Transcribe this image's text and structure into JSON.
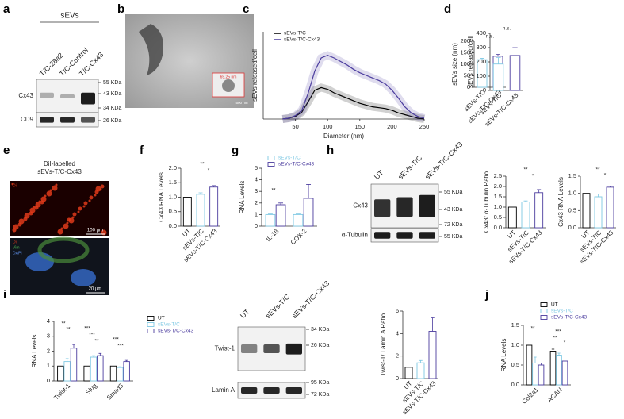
{
  "panel_letters": [
    "a",
    "b",
    "c",
    "d",
    "e",
    "f",
    "g",
    "h",
    "i",
    "j"
  ],
  "blots": {
    "a": {
      "header": "sEVs",
      "lanes": [
        "T/C-28a2",
        "T/C-Control",
        "T/C-Cx43"
      ],
      "rows": [
        "Cx43",
        "CD9"
      ],
      "markers": [
        "55 KDa",
        "43 KDa",
        "34 KDa",
        "26 KDa"
      ]
    },
    "h": {
      "lanes": [
        "UT",
        "sEVs-T/C",
        "sEVs-T/C-Cx43"
      ],
      "rows": [
        "Cx43",
        "α-Tubulin"
      ],
      "markers": [
        "55 KDa",
        "43 KDa",
        "72 KDa",
        "55 KDa"
      ]
    },
    "i": {
      "lanes": [
        "UT",
        "sEVs-T/C",
        "sEVs-T/C-Cx43"
      ],
      "rows": [
        "Twist-1",
        "Lamin A"
      ],
      "markers": [
        "34 KDa",
        "26 KDa",
        "95 KDa",
        "72 KDa"
      ]
    }
  },
  "images": {
    "b": {
      "inset": "69.25 nm",
      "scale": "500 nm"
    },
    "e": {
      "title": "DiI-labelled",
      "subtitle": "sEVs-T/C-Cx43",
      "scale_top": "100 µm",
      "scale_bottom": "20 µm",
      "channels": [
        "DiI",
        "Vim",
        "DAPI"
      ]
    }
  },
  "chart_data": [
    {
      "type": "line",
      "xlabel": "Diameter (nm)",
      "ylabel": "sEVs released/cell",
      "xlim": [
        0,
        250
      ],
      "xticks": [
        50,
        100,
        150,
        200,
        250
      ],
      "ylim": [
        0,
        100
      ],
      "x": [
        30,
        40,
        50,
        60,
        70,
        80,
        90,
        100,
        110,
        120,
        130,
        140,
        150,
        160,
        170,
        180,
        190,
        200,
        210,
        220,
        230,
        240,
        250
      ],
      "series": [
        {
          "name": "sEVs-T/C",
          "color": "#000000",
          "values": [
            0,
            1,
            3,
            8,
            20,
            33,
            36,
            34,
            30,
            27,
            24,
            21,
            18,
            16,
            14,
            13,
            12,
            10,
            7,
            5,
            3,
            1,
            0
          ]
        },
        {
          "name": "sEVs-T/C-Cx43",
          "color": "#4b3c9e",
          "values": [
            0,
            1,
            4,
            10,
            30,
            55,
            70,
            73,
            70,
            66,
            62,
            57,
            53,
            50,
            47,
            44,
            40,
            33,
            24,
            14,
            7,
            3,
            1
          ]
        }
      ]
    },
    {
      "type": "bar",
      "ylabel": "sEVs size (nm)",
      "categories": [
        "sEVs-T/C",
        "sEVs-T/C-Cx43"
      ],
      "values": [
        120,
        135
      ],
      "errors": [
        6,
        8
      ],
      "colors": [
        "#7ec8e3",
        "#4b3c9e"
      ],
      "ylim": [
        0,
        200
      ],
      "yticks": [
        0,
        50,
        100,
        150,
        200
      ],
      "annotations": [
        "n.s."
      ]
    },
    {
      "type": "bar",
      "ylabel": "sEVs released/cell",
      "categories": [
        "sEVs-T/C",
        "sEVs-T/C-Cx43"
      ],
      "values": [
        185,
        245
      ],
      "errors": [
        45,
        55
      ],
      "colors": [
        "#7ec8e3",
        "#4b3c9e"
      ],
      "ylim": [
        0,
        400
      ],
      "yticks": [
        0,
        100,
        200,
        300,
        400
      ],
      "annotations": [
        "n.s."
      ]
    },
    {
      "type": "bar",
      "ylabel": "Cx43 RNA Levels",
      "categories": [
        "UT",
        "sEVs-T/C",
        "sEVs-T/C-Cx43"
      ],
      "values": [
        1.0,
        1.1,
        1.35
      ],
      "errors": [
        0,
        0.05,
        0.05
      ],
      "colors": [
        "#000000",
        "#7ec8e3",
        "#4b3c9e"
      ],
      "ylim": [
        0,
        2
      ],
      "yticks": [
        {
          "value": 0,
          "label": "0.0"
        },
        0.5,
        {
          "value": 1,
          "label": "1.0"
        },
        1.5,
        {
          "value": 2,
          "label": "2.0"
        }
      ],
      "annotations": [
        "**",
        "*"
      ]
    },
    {
      "type": "bar",
      "ylabel": "RNA Levels",
      "categories": [
        "IL-1ß",
        "COX-2"
      ],
      "series": [
        {
          "name": "sEVs-T/C",
          "color": "#7ec8e3",
          "values": [
            1,
            1
          ],
          "errors": [
            0.05,
            0.05
          ]
        },
        {
          "name": "sEVs-T/C-Cx43",
          "color": "#4b3c9e",
          "values": [
            1.85,
            2.4
          ],
          "errors": [
            0.15,
            1.2
          ]
        }
      ],
      "ylim": [
        0,
        5
      ],
      "yticks": [
        0,
        1,
        2,
        3,
        4,
        5
      ],
      "annotations": [
        "**"
      ]
    },
    {
      "type": "bar",
      "ylabel": "Cx43/ α-Tubulin Ratio",
      "categories": [
        "UT",
        "sEVs-T/C",
        "sEVs-T/C-Cx43"
      ],
      "values": [
        1,
        1.25,
        1.7
      ],
      "errors": [
        0,
        0.05,
        0.15
      ],
      "colors": [
        "#000000",
        "#7ec8e3",
        "#4b3c9e"
      ],
      "ylim": [
        0,
        2.5
      ],
      "yticks": [
        {
          "value": 0,
          "label": "0.0"
        },
        0.5,
        {
          "value": 1,
          "label": "1.0"
        },
        1.5,
        {
          "value": 2,
          "label": "2.0"
        },
        2.5
      ],
      "annotations": [
        "**",
        "*"
      ]
    },
    {
      "type": "bar",
      "ylabel": "Cx43 RNA Levels",
      "categories": [
        "UT",
        "sEVs-T/C",
        "sEVs-T/C-Cx43"
      ],
      "values": [
        1,
        0.9,
        1.18
      ],
      "errors": [
        0,
        0.08,
        0.03
      ],
      "colors": [
        "#000000",
        "#7ec8e3",
        "#4b3c9e"
      ],
      "ylim": [
        0,
        1.5
      ],
      "yticks": [
        {
          "value": 0,
          "label": "0.0"
        },
        0.5,
        {
          "value": 1,
          "label": "1.0"
        },
        1.5
      ],
      "annotations": [
        "**",
        "*"
      ]
    },
    {
      "type": "bar",
      "ylabel": "RNA Levels",
      "categories": [
        "Twist-1",
        "Slug",
        "Smad3"
      ],
      "series": [
        {
          "name": "UT",
          "color": "#000000",
          "values": [
            1,
            1,
            1
          ],
          "errors": [
            0,
            0,
            0
          ]
        },
        {
          "name": "sEVs-T/C",
          "color": "#7ec8e3",
          "values": [
            1.3,
            1.6,
            0.9
          ],
          "errors": [
            0.2,
            0.1,
            0.05
          ]
        },
        {
          "name": "sEVs-T/C-Cx43",
          "color": "#4b3c9e",
          "values": [
            2.2,
            1.7,
            1.3
          ],
          "errors": [
            0.25,
            0.15,
            0.08
          ]
        }
      ],
      "ylim": [
        0,
        4
      ],
      "yticks": [
        0,
        1,
        2,
        3,
        4
      ],
      "annotations": [
        "**",
        "**",
        "***",
        "***",
        "**",
        "***",
        "***"
      ]
    },
    {
      "type": "bar",
      "ylabel": "Twist-1/ Lamin A Ratio",
      "categories": [
        "UT",
        "sEVs-T/C",
        "sEVs-T/C-Cx43"
      ],
      "values": [
        1,
        1.4,
        4.2
      ],
      "errors": [
        0,
        0.2,
        1.2
      ],
      "colors": [
        "#000000",
        "#7ec8e3",
        "#4b3c9e"
      ],
      "ylim": [
        0,
        6
      ],
      "yticks": [
        0,
        2,
        4,
        6
      ]
    },
    {
      "type": "bar",
      "ylabel": "RNA Levels",
      "categories": [
        "Col2a1",
        "ACAN"
      ],
      "series": [
        {
          "name": "UT",
          "color": "#000000",
          "values": [
            1,
            0.85
          ],
          "errors": [
            0,
            0.05
          ]
        },
        {
          "name": "sEVs-T/C",
          "color": "#7ec8e3",
          "values": [
            0.55,
            0.75
          ],
          "errors": [
            0.15,
            0.05
          ]
        },
        {
          "name": "sEVs-T/C-Cx43",
          "color": "#4b3c9e",
          "values": [
            0.5,
            0.6
          ],
          "errors": [
            0.05,
            0.05
          ]
        }
      ],
      "ylim": [
        0,
        1.5
      ],
      "yticks": [
        {
          "value": 0,
          "label": "0.0"
        },
        0.5,
        {
          "value": 1,
          "label": "1.0"
        },
        1.5
      ],
      "annotations": [
        "**",
        "***",
        "**",
        "*"
      ]
    }
  ]
}
